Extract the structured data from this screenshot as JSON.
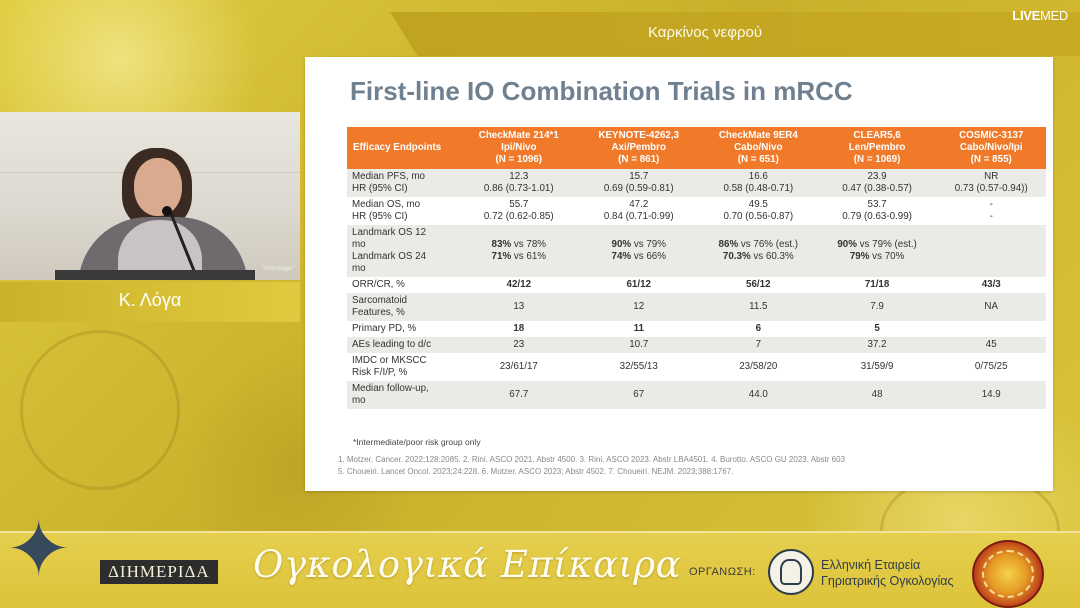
{
  "header": {
    "section_title": "Καρκίνος νεφρού",
    "logo_live": "LIVE",
    "logo_med": "MED"
  },
  "slide": {
    "title": "First-line IO Combination Trials in mRCC",
    "table": {
      "headers": [
        {
          "lines": [
            "Efficacy Endpoints"
          ]
        },
        {
          "lines": [
            "CheckMate 214*1",
            "Ipi/Nivo",
            "(N = 1096)"
          ]
        },
        {
          "lines": [
            "KEYNOTE-4262,3",
            "Axi/Pembro",
            "(N = 861)"
          ]
        },
        {
          "lines": [
            "CheckMate 9ER4",
            "Cabo/Nivo",
            "(N = 651)"
          ]
        },
        {
          "lines": [
            "CLEAR5,6",
            "Len/Pembro",
            "(N = 1069)"
          ]
        },
        {
          "lines": [
            "COSMIC-3137",
            "Cabo/Nivo/Ipi",
            "(N = 855)"
          ]
        }
      ],
      "rows": [
        {
          "label": "Median PFS, mo\nHR (95% CI)",
          "cells": [
            "12.3\n0.86 (0.73-1.01)",
            "15.7\n0.69 (0.59-0.81)",
            "16.6\n0.58 (0.48-0.71)",
            "23.9\n0.47 (0.38-0.57)",
            "NR\n0.73 (0.57-0.94))"
          ]
        },
        {
          "label": "Median OS, mo\nHR (95% CI)",
          "cells": [
            "55.7\n0.72 (0.62-0.85)",
            "47.2\n0.84 (0.71-0.99)",
            "49.5\n0.70 (0.56-0.87)",
            "53.7\n0.79 (0.63-0.99)",
            "-\n-"
          ]
        },
        {
          "label": "Landmark OS 12\nmo\nLandmark OS 24\nmo",
          "cells": [
            "83% vs 78%\n71% vs 61%",
            "90% vs 79%\n74% vs 66%",
            "86% vs 76% (est.)\n70.3% vs 60.3%",
            "90% vs 79% (est.)\n79% vs 70%",
            ""
          ]
        },
        {
          "label": "ORR/CR, %",
          "cells": [
            "42/12",
            "61/12",
            "56/12",
            "71/18",
            "43/3"
          ]
        },
        {
          "label": "Sarcomatoid\nFeatures, %",
          "cells": [
            "13",
            "12",
            "11.5",
            "7.9",
            "NA"
          ]
        },
        {
          "label": "Primary PD, %",
          "cells": [
            "18",
            "11",
            "6",
            "5",
            ""
          ]
        },
        {
          "label": "AEs leading to d/c",
          "cells": [
            "23",
            "10.7",
            "7",
            "37.2",
            "45"
          ]
        },
        {
          "label": "IMDC or MKSCC\nRisk F/I/P, %",
          "cells": [
            "23/61/17",
            "32/55/13",
            "23/58/20",
            "31/59/9",
            "0/75/25"
          ]
        },
        {
          "label": "Median follow-up,\nmo",
          "cells": [
            "67.7",
            "67",
            "44.0",
            "48",
            "14.9"
          ]
        }
      ]
    },
    "footnote": "*Intermediate/poor risk group only",
    "references": [
      "1. Motzer. Cancer. 2022;128:2085. 2. Rini. ASCO 2021. Abstr 4500. 3. Rini. ASCO 2023. Abstr LBA4501. 4. Burotto. ASCO GU 2023. Abstr 603",
      "5. Choueiri. Lancet Oncol. 2023;24:228. 6. Motzer. ASCO 2023; Abstr 4502. 7. Choueiri. NEJM. 2023;388:1767."
    ]
  },
  "speaker": {
    "name": "Κ. Λόγα",
    "video_watermark": "\"Hermitage\""
  },
  "footer": {
    "badge": "ΔΙΗΜΕΡΙΔΑ",
    "event_title": "Ογκολογικά Επίκαιρα",
    "organizer_label": "ΟΡΓΑΝΩΣΗ:",
    "society_name_line1": "Ελληνική Εταιρεία",
    "society_name_line2": "Γηριατρικής Ογκολογίας"
  },
  "icons": {
    "decorative_star": "star-icon",
    "society_logo": "society-logo-icon",
    "seal": "seal-icon"
  },
  "colors": {
    "background": "#d8c236",
    "table_header": "#f07a2a",
    "slide_title": "#6f8190",
    "row_shade": "#ebeae7"
  }
}
